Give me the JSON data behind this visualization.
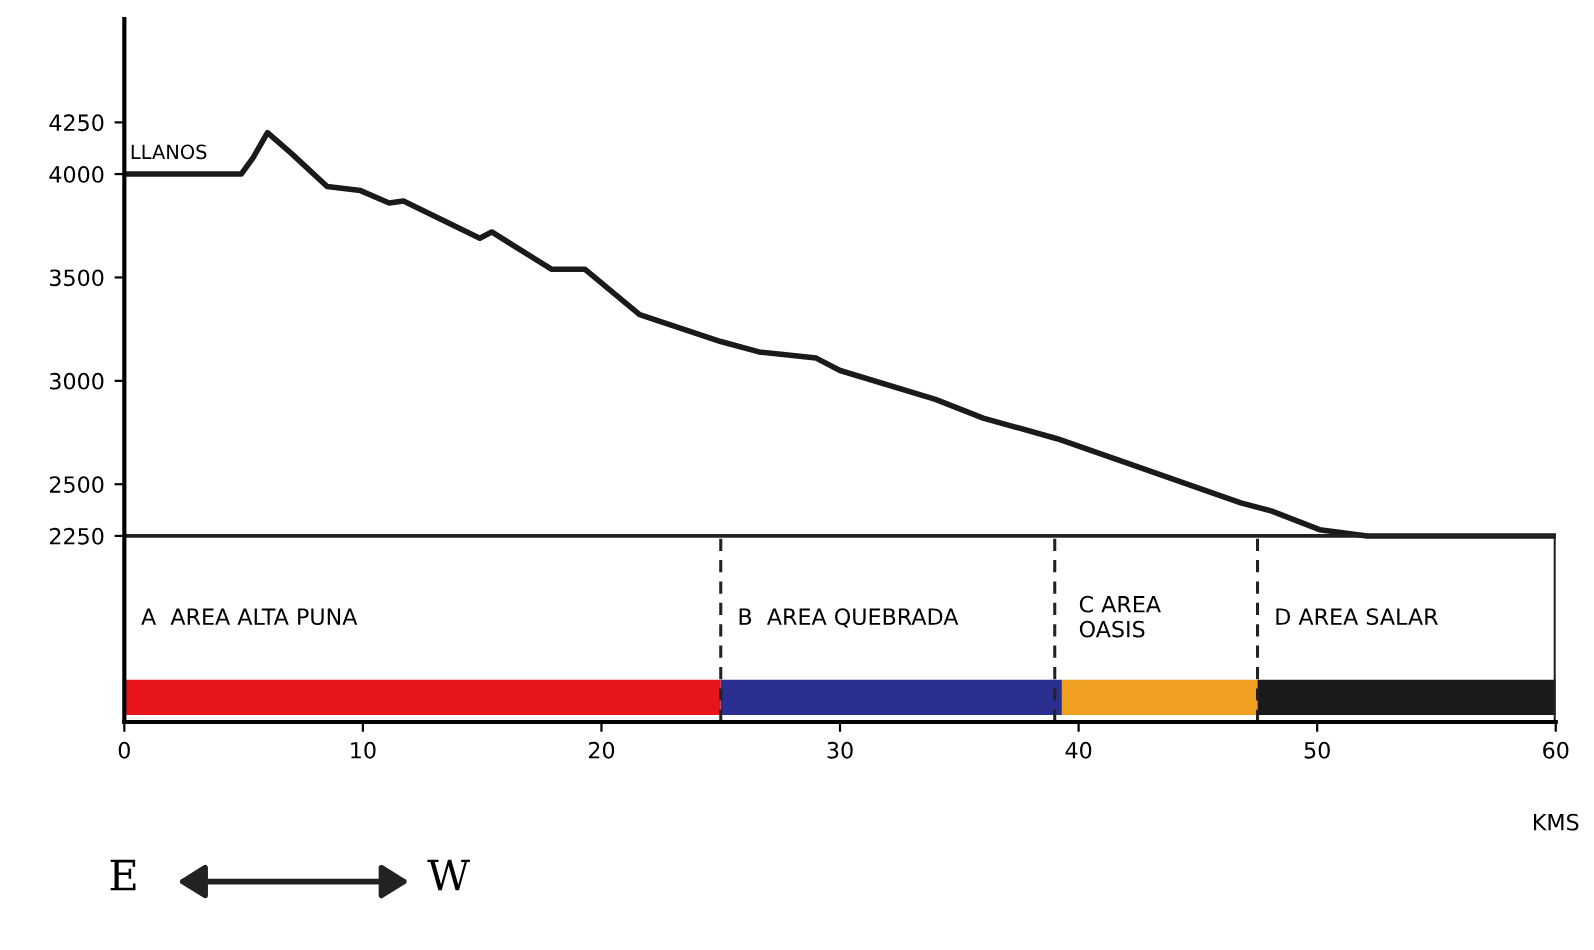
{
  "chart_data": {
    "type": "line",
    "xlabel": "KMS",
    "x": [
      0,
      4.9,
      5.4,
      6.0,
      7.0,
      8.5,
      9.9,
      11.1,
      11.7,
      14.9,
      15.4,
      17.9,
      19.3,
      21.6,
      25.0,
      26.6,
      29.0,
      30.0,
      34.0,
      36.0,
      39.1,
      42.1,
      46.8,
      48.1,
      50.1,
      52.1,
      60
    ],
    "series": [
      {
        "color": "#1a1a1a",
        "values": [
          4000,
          4000,
          4080,
          4200,
          4100,
          3940,
          3920,
          3860,
          3870,
          3690,
          3720,
          3540,
          3540,
          3320,
          3190,
          3140,
          3110,
          3050,
          2910,
          2820,
          2720,
          2600,
          2410,
          2370,
          2280,
          2250,
          2250
        ]
      }
    ],
    "xlim": [
      0,
      60
    ],
    "xticks": [
      0,
      10,
      20,
      30,
      40,
      50,
      60
    ],
    "ylim": [
      1350,
      4750
    ],
    "yticks": [
      2250,
      2500,
      3000,
      3500,
      4000,
      4250
    ],
    "ref_lines": [
      {
        "axis": "y",
        "value": 2250,
        "line_style": "solid"
      },
      {
        "axis": "x",
        "value": 25,
        "line_style": "dashed"
      },
      {
        "axis": "x",
        "value": 39,
        "line_style": "dashed"
      },
      {
        "axis": "x",
        "value": 47.5,
        "line_style": "dashed"
      }
    ],
    "bands": [
      {
        "axis": "x",
        "from": 0,
        "to": 25,
        "label": "A  AREA ALTA PUNA",
        "color": "#e8141c"
      },
      {
        "axis": "x",
        "from": 25,
        "to": 39.3,
        "label": "B  AREA QUEBRADA",
        "color": "#2b2f8f"
      },
      {
        "axis": "x",
        "from": 39.3,
        "to": 47.5,
        "label": "C AREA\nOASIS",
        "color": "#f0a020"
      },
      {
        "axis": "x",
        "from": 47.5,
        "to": 60,
        "label": "D AREA SALAR",
        "color": "#1a1a1a"
      }
    ],
    "annotations": [
      {
        "text": "LLANOS",
        "x": 0,
        "y": 4000
      },
      "E",
      "W"
    ],
    "grid": false,
    "marker": "none",
    "line_style": "solid"
  }
}
